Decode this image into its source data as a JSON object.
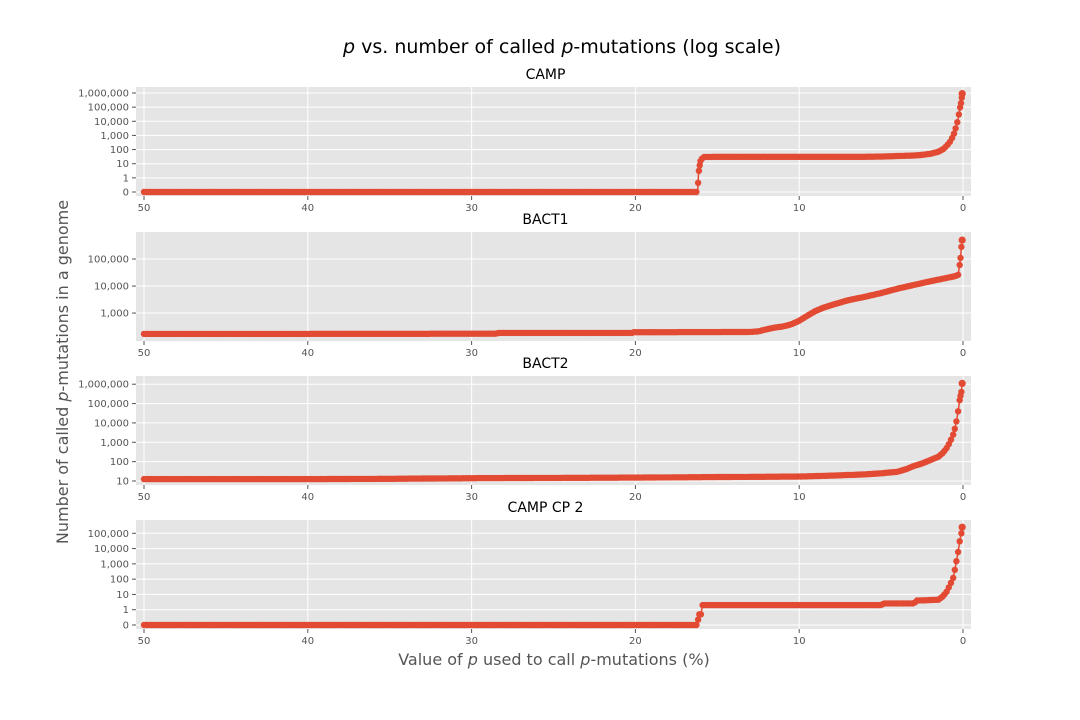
{
  "figure": {
    "title_parts": {
      "p": "p",
      "mid": " vs. number of called ",
      "p2": "p",
      "end": "-mutations (log scale)"
    },
    "xlabel_parts": {
      "pre": "Value of ",
      "p": "p",
      "mid": " used to call ",
      "p2": "p",
      "end": "-mutations (%)"
    },
    "ylabel_parts": {
      "pre": "Number of called ",
      "p": "p",
      "end": "-mutations in a genome"
    }
  },
  "style": {
    "series_color": "#e24a33",
    "plot_bg": "#e5e5e5",
    "grid_color": "#ffffff"
  },
  "chart_data": [
    {
      "type": "scatter",
      "title": "CAMP",
      "x_range": [
        50,
        0
      ],
      "x_direction": "decreasing",
      "x_ticks": [
        50,
        40,
        30,
        20,
        10,
        0
      ],
      "y_scale": "symlog",
      "y_ticks": [
        0,
        1,
        10,
        100,
        1000,
        10000,
        100000,
        1000000
      ],
      "y_tick_labels": [
        "0",
        "1",
        "10",
        "100",
        "1,000",
        "10,000",
        "100,000",
        "1,000,000"
      ],
      "grid": true,
      "series": [
        {
          "values_xy": [
            [
              50,
              0
            ],
            [
              40,
              0
            ],
            [
              30,
              0
            ],
            [
              20,
              0
            ],
            [
              16.2,
              0
            ],
            [
              16.15,
              2
            ],
            [
              16.1,
              5
            ],
            [
              16.05,
              12
            ],
            [
              16.0,
              20
            ],
            [
              15.8,
              30
            ],
            [
              15,
              31
            ],
            [
              12,
              31
            ],
            [
              10,
              31
            ],
            [
              8,
              31
            ],
            [
              6,
              31
            ],
            [
              5,
              32
            ],
            [
              4,
              35
            ],
            [
              3,
              38
            ],
            [
              2.5,
              42
            ],
            [
              2,
              50
            ],
            [
              1.5,
              70
            ],
            [
              1.2,
              110
            ],
            [
              1.0,
              180
            ],
            [
              0.8,
              350
            ],
            [
              0.6,
              900
            ],
            [
              0.5,
              2000
            ],
            [
              0.4,
              5000
            ],
            [
              0.3,
              15000
            ],
            [
              0.2,
              60000
            ],
            [
              0.15,
              150000
            ],
            [
              0.1,
              250000
            ],
            [
              0.05,
              900000
            ]
          ]
        }
      ]
    },
    {
      "type": "scatter",
      "title": "BACT1",
      "x_range": [
        50,
        0
      ],
      "x_direction": "decreasing",
      "x_ticks": [
        50,
        40,
        30,
        20,
        10,
        0
      ],
      "y_scale": "log",
      "y_ticks": [
        1000,
        10000,
        100000
      ],
      "y_tick_labels": [
        "1,000",
        "10,000",
        "100,000"
      ],
      "grid": true,
      "series": [
        {
          "values_xy": [
            [
              50,
              170
            ],
            [
              40,
              170
            ],
            [
              30,
              172
            ],
            [
              28.5,
              172
            ],
            [
              28.4,
              185
            ],
            [
              25,
              185
            ],
            [
              20.2,
              185
            ],
            [
              20.1,
              195
            ],
            [
              15,
              198
            ],
            [
              13,
              200
            ],
            [
              12.5,
              210
            ],
            [
              12,
              250
            ],
            [
              11.5,
              290
            ],
            [
              11,
              320
            ],
            [
              10.5,
              380
            ],
            [
              10,
              520
            ],
            [
              9.5,
              800
            ],
            [
              9,
              1200
            ],
            [
              8.5,
              1600
            ],
            [
              8,
              2000
            ],
            [
              7,
              3000
            ],
            [
              6,
              4000
            ],
            [
              5,
              5500
            ],
            [
              4,
              8000
            ],
            [
              3,
              11000
            ],
            [
              2,
              15000
            ],
            [
              1,
              20000
            ],
            [
              0.5,
              23000
            ],
            [
              0.3,
              26000
            ],
            [
              0.2,
              60000
            ],
            [
              0.15,
              110000
            ],
            [
              0.1,
              280000
            ],
            [
              0.05,
              500000
            ]
          ]
        }
      ]
    },
    {
      "type": "scatter",
      "title": "BACT2",
      "x_range": [
        50,
        0
      ],
      "x_direction": "decreasing",
      "x_ticks": [
        50,
        40,
        30,
        20,
        10,
        0
      ],
      "y_scale": "log",
      "y_ticks": [
        10,
        100,
        1000,
        10000,
        100000,
        1000000
      ],
      "y_tick_labels": [
        "10",
        "100",
        "1,000",
        "10,000",
        "100,000",
        "1,000,000"
      ],
      "grid": true,
      "series": [
        {
          "values_xy": [
            [
              50,
              12.5
            ],
            [
              40,
              12.5
            ],
            [
              35,
              13
            ],
            [
              30,
              14
            ],
            [
              25,
              14.5
            ],
            [
              20,
              15
            ],
            [
              15,
              16
            ],
            [
              10,
              17
            ],
            [
              8,
              19
            ],
            [
              6,
              22
            ],
            [
              5,
              25
            ],
            [
              4,
              30
            ],
            [
              3.5,
              40
            ],
            [
              3,
              60
            ],
            [
              2.5,
              80
            ],
            [
              2,
              120
            ],
            [
              1.5,
              180
            ],
            [
              1.2,
              300
            ],
            [
              1.0,
              500
            ],
            [
              0.8,
              1000
            ],
            [
              0.6,
              2500
            ],
            [
              0.5,
              5000
            ],
            [
              0.4,
              12000
            ],
            [
              0.3,
              40000
            ],
            [
              0.2,
              150000
            ],
            [
              0.15,
              250000
            ],
            [
              0.1,
              400000
            ],
            [
              0.05,
              1100000
            ]
          ]
        }
      ]
    },
    {
      "type": "scatter",
      "title": "CAMP CP 2",
      "x_range": [
        50,
        0
      ],
      "x_direction": "decreasing",
      "x_ticks": [
        50,
        40,
        30,
        20,
        10,
        0
      ],
      "y_scale": "symlog",
      "y_ticks": [
        0,
        1,
        10,
        100,
        1000,
        10000,
        100000
      ],
      "y_tick_labels": [
        "0",
        "1",
        "10",
        "100",
        "1,000",
        "10,000",
        "100,000"
      ],
      "grid": true,
      "series": [
        {
          "values_xy": [
            [
              50,
              0
            ],
            [
              40,
              0
            ],
            [
              30,
              0
            ],
            [
              20,
              0
            ],
            [
              16.2,
              0
            ],
            [
              16.15,
              0.7
            ],
            [
              16.0,
              0.7
            ],
            [
              15.9,
              2
            ],
            [
              12,
              2
            ],
            [
              10,
              2
            ],
            [
              8,
              2
            ],
            [
              5,
              2
            ],
            [
              4.8,
              2.6
            ],
            [
              3.0,
              2.6
            ],
            [
              2.8,
              4
            ],
            [
              1.5,
              4.5
            ],
            [
              1.2,
              8
            ],
            [
              1.0,
              15
            ],
            [
              0.8,
              40
            ],
            [
              0.6,
              120
            ],
            [
              0.5,
              400
            ],
            [
              0.4,
              1500
            ],
            [
              0.3,
              6000
            ],
            [
              0.2,
              30000
            ],
            [
              0.1,
              100000
            ],
            [
              0.05,
              250000
            ]
          ]
        }
      ]
    }
  ]
}
